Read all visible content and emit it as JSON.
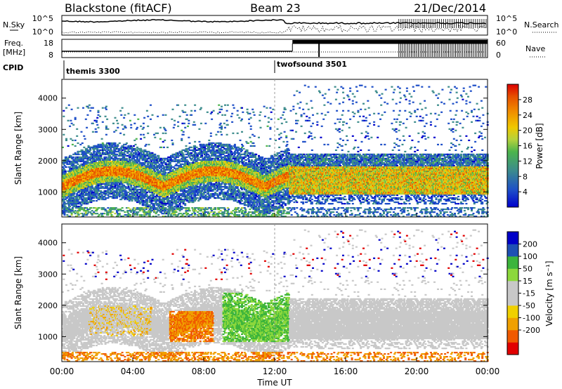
{
  "header": {
    "station": "Blackstone (fitACF)",
    "beam": "Beam 23",
    "date": "21/Dec/2014"
  },
  "noise_panel": {
    "left_label": "N.Sky",
    "right_label": "N.Search",
    "left_ticks": [
      "10^5",
      "10^0"
    ],
    "right_ticks": [
      "10^5",
      "10^0"
    ]
  },
  "freq_panel": {
    "left_label_1": "Freq.",
    "left_label_2": "[MHz]",
    "right_label": "Nave",
    "left_ticks": [
      "18",
      "8"
    ],
    "right_ticks": [
      "60",
      "0"
    ]
  },
  "cpid": {
    "label": "CPID",
    "modes": [
      {
        "name": "themis 3300",
        "start_hour": 0
      },
      {
        "name": "twofsound 3501",
        "start_hour": 12
      }
    ]
  },
  "colors": {
    "power_scale": [
      "#0000cc",
      "#1e4fc8",
      "#3c8c8c",
      "#4cb44c",
      "#b4d23c",
      "#f0c800",
      "#f08c00",
      "#e65000",
      "#dc0000"
    ],
    "velocity_scale": [
      "#e10000",
      "#f05a00",
      "#f0a000",
      "#f0d000",
      "#c8c8c8",
      "#c8c8c8",
      "#8cd83c",
      "#3cb43c",
      "#1e50b4",
      "#0000c8"
    ]
  },
  "chart_data": [
    {
      "type": "heatmap",
      "name": "power",
      "ylabel": "Slant Range [km]",
      "yticks": [
        "1000",
        "2000",
        "3000",
        "4000"
      ],
      "ylim": [
        200,
        4600
      ],
      "colorbar_label": "Power [dB]",
      "colorbar_ticks": [
        "4",
        "8",
        "12",
        "16",
        "20",
        "24",
        "28"
      ]
    },
    {
      "type": "heatmap",
      "name": "velocity",
      "ylabel": "Slant Range [km]",
      "yticks": [
        "1000",
        "2000",
        "3000",
        "4000"
      ],
      "ylim": [
        200,
        4600
      ],
      "colorbar_label": "Velocity [m s⁻¹]",
      "colorbar_ticks": [
        "200",
        "100",
        "50",
        "15",
        "-15",
        "-50",
        "-100",
        "-200"
      ],
      "xlabel": "Time UT",
      "xticks": [
        "00:00",
        "04:00",
        "08:00",
        "12:00",
        "16:00",
        "20:00",
        "00:00"
      ],
      "xlim_hours": [
        0,
        24
      ]
    }
  ]
}
